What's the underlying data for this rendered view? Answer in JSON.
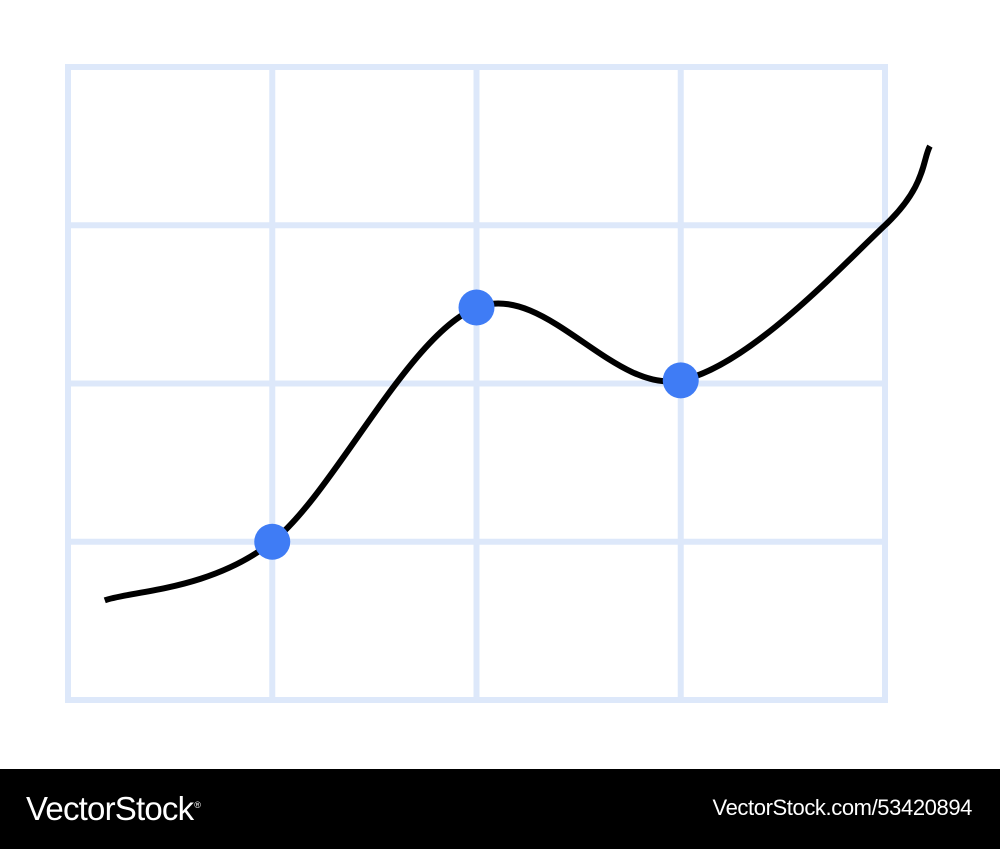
{
  "chart_data": {
    "type": "line",
    "title": "",
    "xlabel": "",
    "ylabel": "",
    "grid": true,
    "xlim": [
      0,
      4
    ],
    "ylim": [
      0,
      4
    ],
    "series": [
      {
        "curve": [
          [
            0.18,
            0.63
          ],
          [
            1.0,
            1.0
          ],
          [
            2.0,
            2.48
          ],
          [
            3.0,
            2.02
          ],
          [
            4.0,
            3.0
          ],
          [
            4.22,
            3.5
          ]
        ],
        "markers": [
          [
            1.0,
            1.0
          ],
          [
            2.0,
            2.48
          ],
          [
            3.0,
            2.02
          ]
        ]
      }
    ],
    "colors": {
      "grid": "#dde8fa",
      "line": "#000000",
      "marker": "#3f7cf5"
    }
  },
  "watermark": {
    "brand": "VectorStock",
    "registered": "®",
    "image_id": "VectorStock.com/53420894"
  }
}
